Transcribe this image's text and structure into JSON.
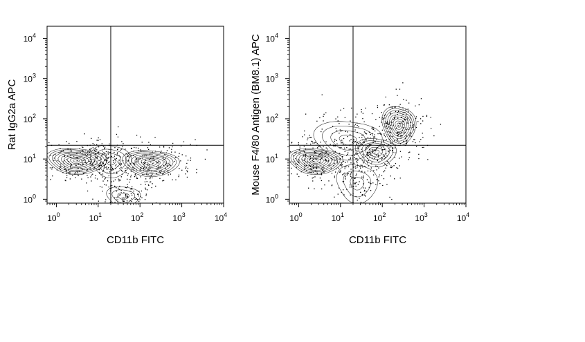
{
  "chart_data": [
    {
      "type": "scatter",
      "subtype": "flow-cytometry contour plot with outliers",
      "xlabel": "CD11b FITC",
      "ylabel": "Rat IgG2a APC",
      "x_scale": "log",
      "y_scale": "log",
      "xlim": [
        0.6,
        10000
      ],
      "ylim": [
        0.8,
        20000
      ],
      "x_ticks": [
        {
          "base": "10",
          "exp": "0",
          "value": 1
        },
        {
          "base": "10",
          "exp": "1",
          "value": 10
        },
        {
          "base": "10",
          "exp": "2",
          "value": 100
        },
        {
          "base": "10",
          "exp": "3",
          "value": 1000
        },
        {
          "base": "10",
          "exp": "4",
          "value": 10000
        }
      ],
      "y_ticks": [
        {
          "base": "10",
          "exp": "0",
          "value": 1
        },
        {
          "base": "10",
          "exp": "1",
          "value": 10
        },
        {
          "base": "10",
          "exp": "2",
          "value": 100
        },
        {
          "base": "10",
          "exp": "3",
          "value": 1000
        },
        {
          "base": "10",
          "exp": "4",
          "value": 10000
        }
      ],
      "quadrant_gate": {
        "x": 20,
        "y": 22
      },
      "populations": [
        {
          "x": 3,
          "y": 9,
          "spread_x": 0.45,
          "spread_y": 0.2,
          "levels": 10
        },
        {
          "x": 180,
          "y": 8,
          "spread_x": 0.42,
          "spread_y": 0.2,
          "levels": 9
        },
        {
          "x": 20,
          "y": 9,
          "spread_x": 0.3,
          "spread_y": 0.25,
          "levels": 4
        },
        {
          "x": 40,
          "y": 1.2,
          "spread_x": 0.25,
          "spread_y": 0.15,
          "levels": 3
        }
      ],
      "grid": false,
      "legend": "none"
    },
    {
      "type": "scatter",
      "subtype": "flow-cytometry contour plot with outliers",
      "xlabel": "CD11b FITC",
      "ylabel": "Mouse F4/80 Antigen (BM8.1) APC",
      "x_scale": "log",
      "y_scale": "log",
      "xlim": [
        0.6,
        10000
      ],
      "ylim": [
        0.8,
        20000
      ],
      "x_ticks": [
        {
          "base": "10",
          "exp": "0",
          "value": 1
        },
        {
          "base": "10",
          "exp": "1",
          "value": 10
        },
        {
          "base": "10",
          "exp": "2",
          "value": 100
        },
        {
          "base": "10",
          "exp": "3",
          "value": 1000
        },
        {
          "base": "10",
          "exp": "4",
          "value": 10000
        }
      ],
      "y_ticks": [
        {
          "base": "10",
          "exp": "0",
          "value": 1
        },
        {
          "base": "10",
          "exp": "1",
          "value": 10
        },
        {
          "base": "10",
          "exp": "2",
          "value": 100
        },
        {
          "base": "10",
          "exp": "3",
          "value": 1000
        },
        {
          "base": "10",
          "exp": "4",
          "value": 10000
        }
      ],
      "quadrant_gate": {
        "x": 20,
        "y": 22
      },
      "populations": [
        {
          "x": 2.5,
          "y": 9,
          "spread_x": 0.4,
          "spread_y": 0.2,
          "levels": 10
        },
        {
          "x": 250,
          "y": 70,
          "spread_x": 0.25,
          "spread_y": 0.3,
          "levels": 9
        },
        {
          "x": 70,
          "y": 15,
          "spread_x": 0.3,
          "spread_y": 0.22,
          "levels": 6
        },
        {
          "x": 15,
          "y": 30,
          "spread_x": 0.5,
          "spread_y": 0.3,
          "levels": 4
        },
        {
          "x": 25,
          "y": 2.5,
          "spread_x": 0.3,
          "spread_y": 0.3,
          "levels": 3
        }
      ],
      "grid": false,
      "legend": "none"
    }
  ]
}
